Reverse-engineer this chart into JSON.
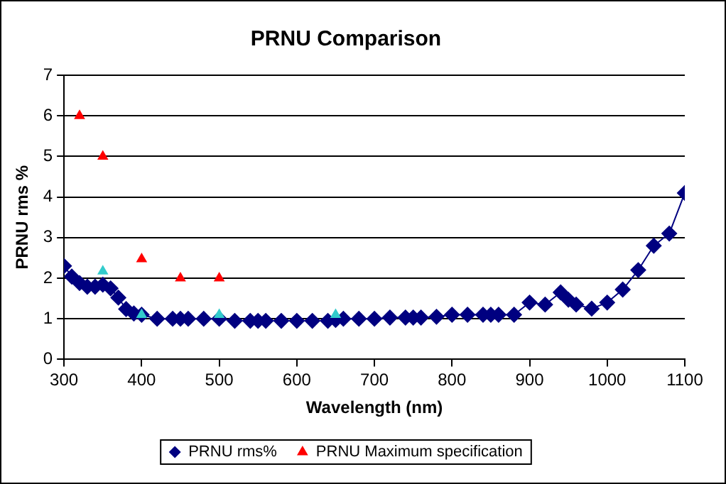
{
  "chart_data": {
    "type": "line",
    "title": "PRNU Comparison",
    "xlabel": "Wavelength (nm)",
    "ylabel": "PRNU rms %",
    "xlim": [
      300,
      1100
    ],
    "xticks": [
      300,
      400,
      500,
      600,
      700,
      800,
      900,
      1000,
      1100
    ],
    "ylim": [
      0,
      7
    ],
    "yticks": [
      0,
      1,
      2,
      3,
      4,
      5,
      6,
      7
    ],
    "grid": "y",
    "legend": "bottom",
    "series": [
      {
        "name": "PRNU rms%",
        "type": "line",
        "marker": "diamond",
        "color": "#000080",
        "x": [
          300,
          310,
          320,
          330,
          340,
          350,
          360,
          370,
          380,
          390,
          400,
          420,
          440,
          450,
          460,
          480,
          500,
          520,
          540,
          550,
          560,
          580,
          600,
          620,
          640,
          650,
          660,
          680,
          700,
          720,
          740,
          750,
          760,
          780,
          800,
          820,
          840,
          850,
          860,
          880,
          900,
          920,
          940,
          950,
          960,
          980,
          1000,
          1020,
          1040,
          1060,
          1080,
          1100
        ],
        "values": [
          2.3,
          2.04,
          1.88,
          1.79,
          1.79,
          1.84,
          1.75,
          1.52,
          1.24,
          1.13,
          1.1,
          1.0,
          1.0,
          1.0,
          1.0,
          1.0,
          1.0,
          0.95,
          0.95,
          0.95,
          0.95,
          0.95,
          0.95,
          0.95,
          0.95,
          0.97,
          1.0,
          1.0,
          1.0,
          1.03,
          1.03,
          1.03,
          1.03,
          1.05,
          1.1,
          1.1,
          1.1,
          1.1,
          1.1,
          1.1,
          1.4,
          1.35,
          1.65,
          1.47,
          1.35,
          1.25,
          1.4,
          1.72,
          2.2,
          2.8,
          3.1,
          4.1
        ]
      },
      {
        "name": "PRNU Maximum specification",
        "type": "scatter",
        "marker": "triangle",
        "color": "#ff0000",
        "x": [
          320,
          350,
          400,
          450,
          500
        ],
        "values": [
          6.0,
          5.0,
          2.47,
          2.0,
          2.0
        ]
      },
      {
        "type": "scatter",
        "marker": "triangle",
        "color": "#33cccc",
        "x": [
          350,
          400,
          500,
          650
        ],
        "values": [
          2.17,
          1.1,
          1.1,
          1.1
        ]
      }
    ]
  }
}
